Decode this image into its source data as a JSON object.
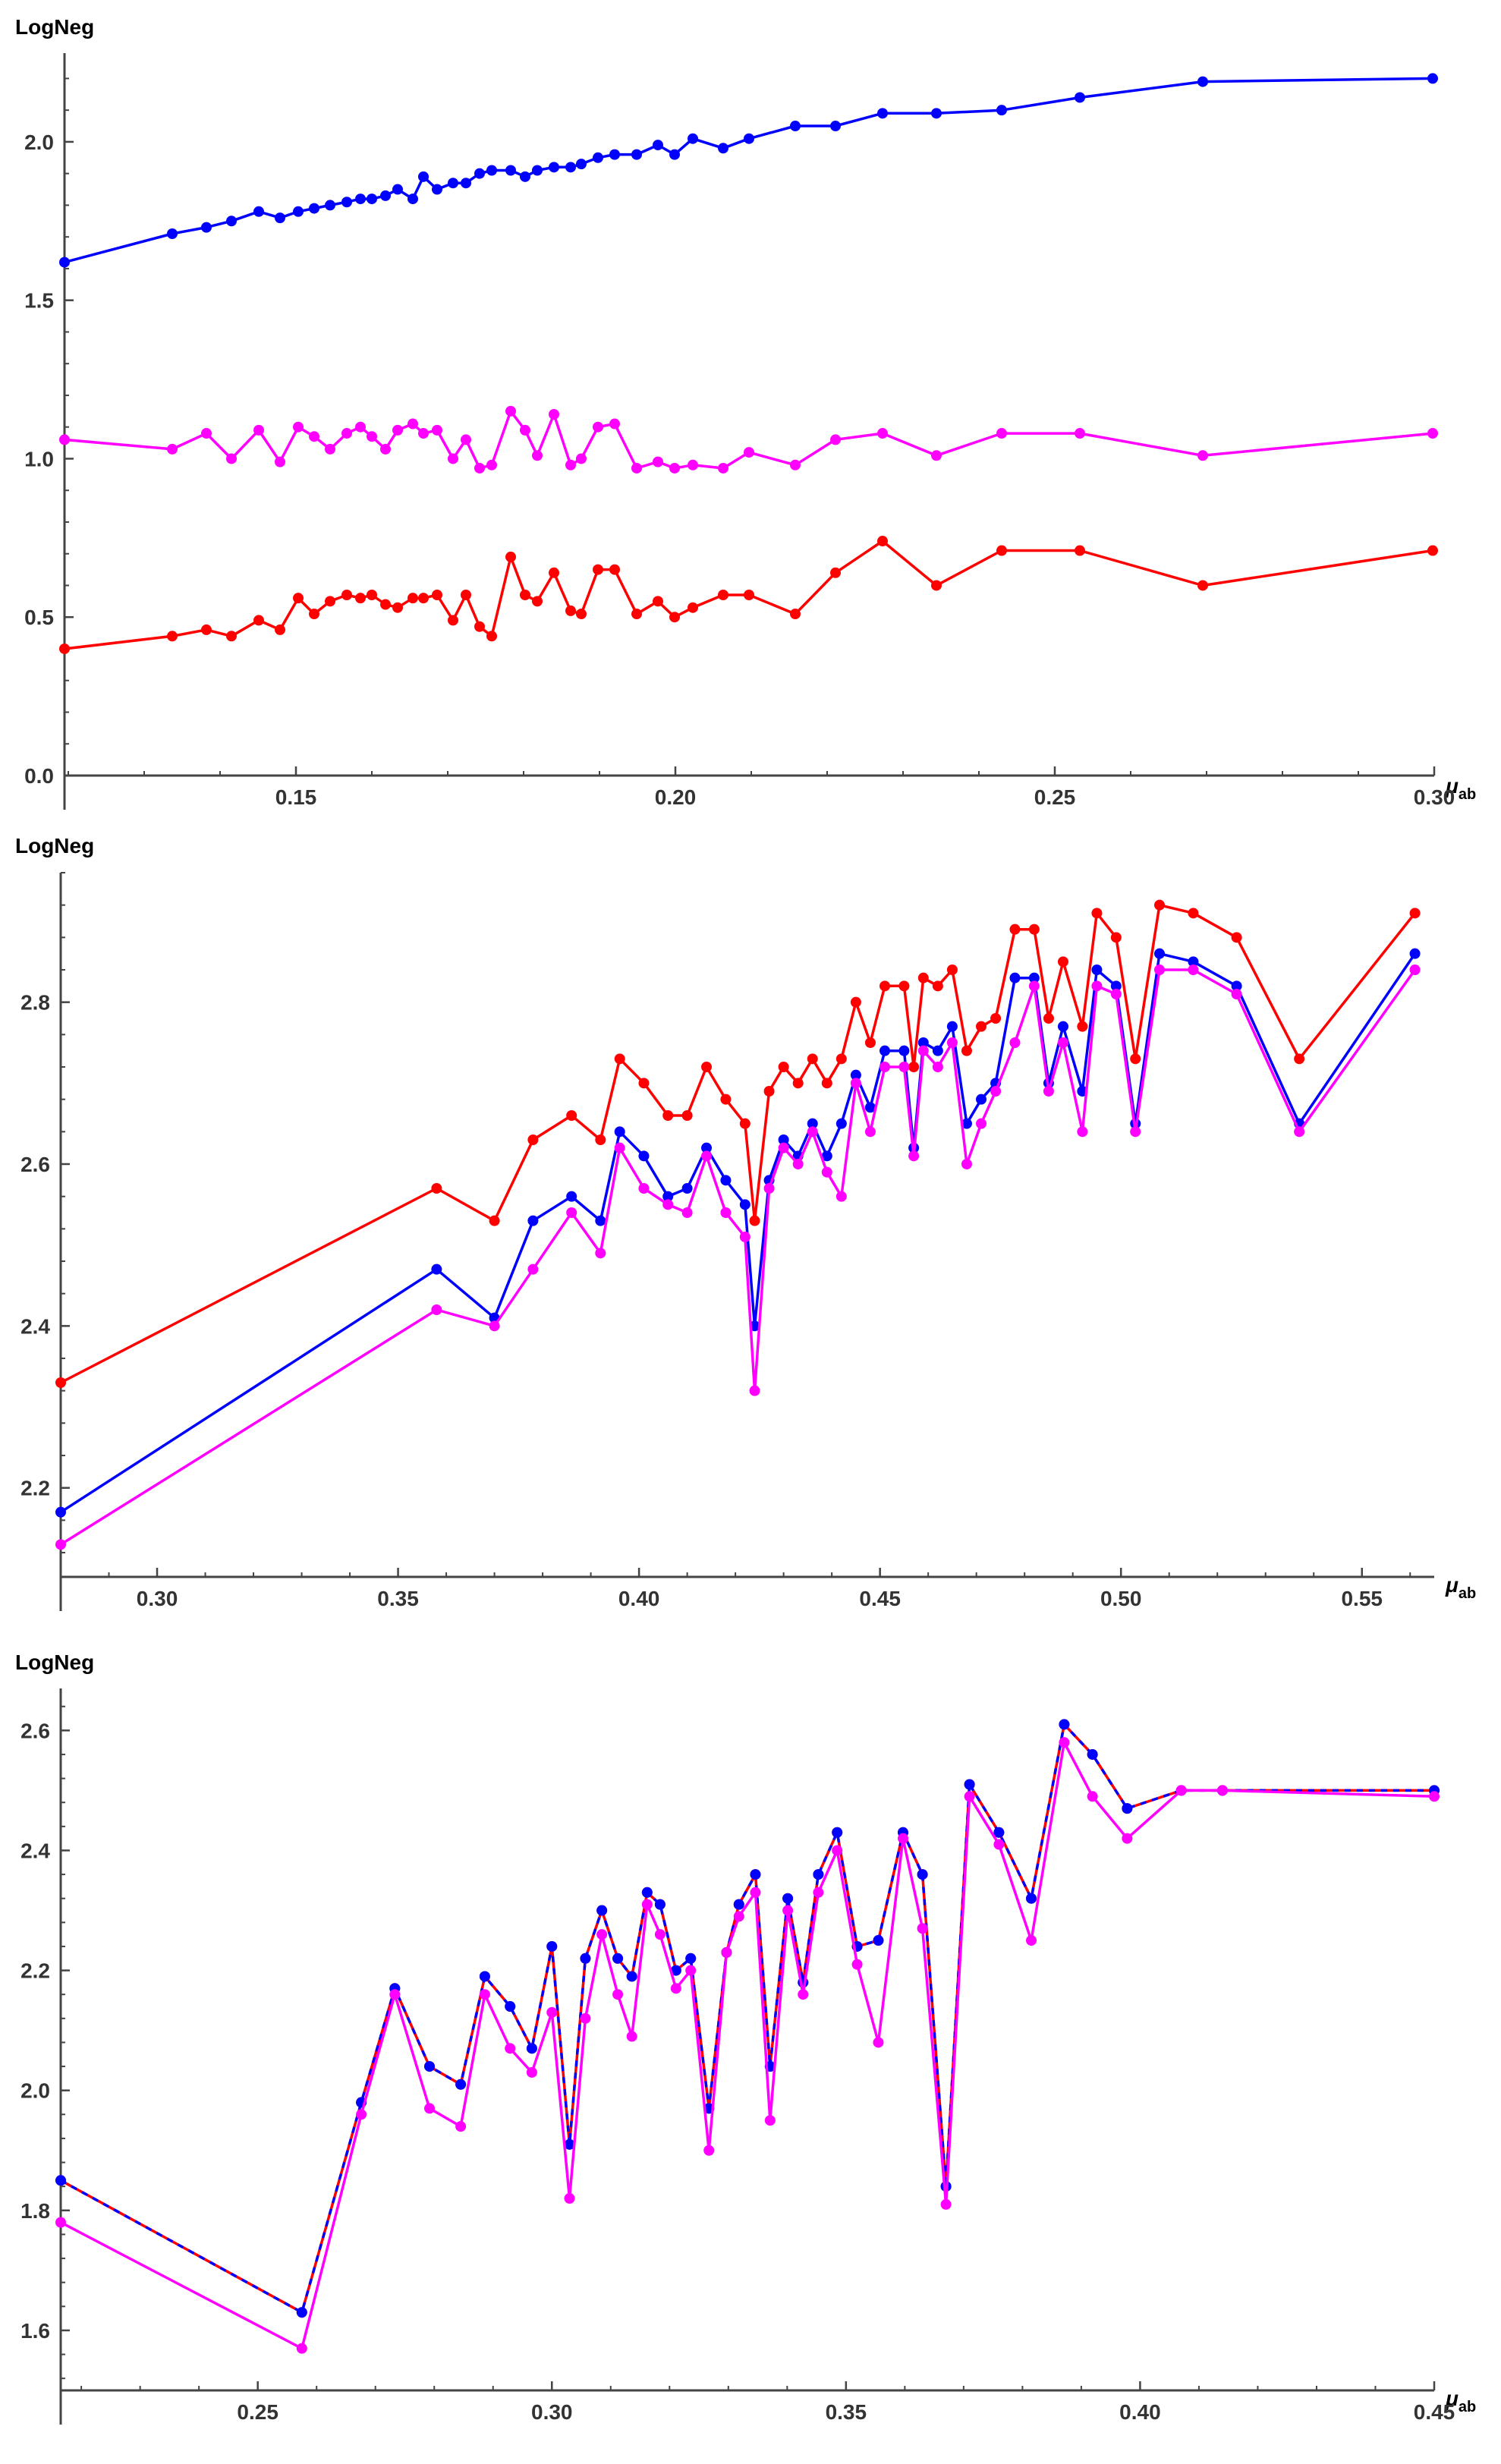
{
  "charts": [
    {
      "type": "line",
      "ylabel": "LogNeg",
      "xlabel": {
        "main": "μ",
        "sub": "ab"
      },
      "xlim": [
        0.1195,
        0.3
      ],
      "ylim": [
        0.0,
        2.28
      ],
      "xticks": [
        "0.15",
        "0.20",
        "0.25",
        "0.30"
      ],
      "yticks": [
        "0.0",
        "0.5",
        "1.0",
        "1.5",
        "2.0"
      ],
      "grid": false,
      "series": [
        {
          "color": "#0000ff",
          "dashed": false,
          "x": [
            0.1195,
            0.1337,
            0.1382,
            0.1415,
            0.1451,
            0.1479,
            0.1503,
            0.1524,
            0.1545,
            0.1567,
            0.1585,
            0.16,
            0.1618,
            0.1634,
            0.1654,
            0.1668,
            0.1686,
            0.1707,
            0.1724,
            0.1742,
            0.1758,
            0.1783,
            0.1802,
            0.1818,
            0.184,
            0.1862,
            0.1876,
            0.1898,
            0.192,
            0.1949,
            0.1977,
            0.1999,
            0.2023,
            0.2063,
            0.2097,
            0.2158,
            0.2211,
            0.2273,
            0.2344,
            0.243,
            0.2533,
            0.2695,
            0.2998
          ],
          "y": [
            1.62,
            1.71,
            1.73,
            1.75,
            1.78,
            1.76,
            1.78,
            1.79,
            1.8,
            1.81,
            1.82,
            1.82,
            1.83,
            1.85,
            1.82,
            1.89,
            1.85,
            1.87,
            1.87,
            1.9,
            1.91,
            1.91,
            1.89,
            1.91,
            1.92,
            1.92,
            1.93,
            1.95,
            1.96,
            1.96,
            1.99,
            1.96,
            2.01,
            1.98,
            2.01,
            2.05,
            2.05,
            2.09,
            2.09,
            2.1,
            2.14,
            2.19,
            2.2
          ]
        },
        {
          "color": "#ff00ff",
          "dashed": false,
          "x": [
            0.1195,
            0.1337,
            0.1382,
            0.1415,
            0.1451,
            0.1479,
            0.1503,
            0.1524,
            0.1545,
            0.1567,
            0.1585,
            0.16,
            0.1618,
            0.1634,
            0.1654,
            0.1668,
            0.1686,
            0.1707,
            0.1724,
            0.1742,
            0.1758,
            0.1783,
            0.1802,
            0.1818,
            0.184,
            0.1862,
            0.1876,
            0.1898,
            0.192,
            0.1949,
            0.1977,
            0.1999,
            0.2023,
            0.2063,
            0.2097,
            0.2158,
            0.2211,
            0.2273,
            0.2344,
            0.243,
            0.2533,
            0.2695,
            0.2998
          ],
          "y": [
            1.06,
            1.03,
            1.08,
            1.0,
            1.09,
            0.99,
            1.1,
            1.07,
            1.03,
            1.08,
            1.1,
            1.07,
            1.03,
            1.09,
            1.11,
            1.08,
            1.09,
            1.0,
            1.06,
            0.97,
            0.98,
            1.15,
            1.09,
            1.01,
            1.14,
            0.98,
            1.0,
            1.1,
            1.11,
            0.97,
            0.99,
            0.97,
            0.98,
            0.97,
            1.02,
            0.98,
            1.06,
            1.08,
            1.01,
            1.08,
            1.08,
            1.01,
            1.08
          ]
        },
        {
          "color": "#ff0000",
          "dashed": false,
          "x": [
            0.1195,
            0.1337,
            0.1382,
            0.1415,
            0.1451,
            0.1479,
            0.1503,
            0.1524,
            0.1545,
            0.1567,
            0.1585,
            0.16,
            0.1618,
            0.1634,
            0.1654,
            0.1668,
            0.1686,
            0.1707,
            0.1724,
            0.1742,
            0.1758,
            0.1783,
            0.1802,
            0.1818,
            0.184,
            0.1862,
            0.1876,
            0.1898,
            0.192,
            0.1949,
            0.1977,
            0.1999,
            0.2023,
            0.2063,
            0.2097,
            0.2158,
            0.2211,
            0.2273,
            0.2344,
            0.243,
            0.2533,
            0.2695,
            0.2998
          ],
          "y": [
            0.4,
            0.44,
            0.46,
            0.44,
            0.49,
            0.46,
            0.56,
            0.51,
            0.55,
            0.57,
            0.56,
            0.57,
            0.54,
            0.53,
            0.56,
            0.56,
            0.57,
            0.49,
            0.57,
            0.47,
            0.44,
            0.69,
            0.57,
            0.55,
            0.64,
            0.52,
            0.51,
            0.65,
            0.65,
            0.51,
            0.55,
            0.5,
            0.53,
            0.57,
            0.57,
            0.51,
            0.64,
            0.74,
            0.6,
            0.71,
            0.71,
            0.6,
            0.71
          ]
        }
      ]
    },
    {
      "type": "line",
      "ylabel": "LogNeg",
      "xlabel": {
        "main": "μ",
        "sub": "ab"
      },
      "xlim": [
        0.28,
        0.565
      ],
      "ylim": [
        2.09,
        2.96
      ],
      "xticks": [
        "0.30",
        "0.35",
        "0.40",
        "0.45",
        "0.50",
        "0.55"
      ],
      "yticks": [
        "2.2",
        "2.4",
        "2.6",
        "2.8"
      ],
      "grid": false,
      "series": [
        {
          "color": "#ff0000",
          "dashed": false,
          "x": [
            0.28,
            0.358,
            0.37,
            0.378,
            0.386,
            0.392,
            0.396,
            0.401,
            0.406,
            0.41,
            0.414,
            0.418,
            0.422,
            0.424,
            0.427,
            0.43,
            0.433,
            0.436,
            0.439,
            0.442,
            0.445,
            0.448,
            0.451,
            0.455,
            0.457,
            0.459,
            0.462,
            0.465,
            0.468,
            0.471,
            0.474,
            0.478,
            0.482,
            0.485,
            0.488,
            0.492,
            0.495,
            0.499,
            0.503,
            0.508,
            0.515,
            0.524,
            0.537,
            0.561
          ],
          "y": [
            2.33,
            2.57,
            2.53,
            2.63,
            2.66,
            2.63,
            2.73,
            2.7,
            2.66,
            2.66,
            2.72,
            2.68,
            2.65,
            2.53,
            2.69,
            2.72,
            2.7,
            2.73,
            2.7,
            2.73,
            2.8,
            2.75,
            2.82,
            2.82,
            2.72,
            2.83,
            2.82,
            2.84,
            2.74,
            2.77,
            2.78,
            2.89,
            2.89,
            2.78,
            2.85,
            2.77,
            2.91,
            2.88,
            2.73,
            2.92,
            2.91,
            2.88,
            2.73,
            2.91
          ]
        },
        {
          "color": "#0000ff",
          "dashed": false,
          "x": [
            0.28,
            0.358,
            0.37,
            0.378,
            0.386,
            0.392,
            0.396,
            0.401,
            0.406,
            0.41,
            0.414,
            0.418,
            0.422,
            0.424,
            0.427,
            0.43,
            0.433,
            0.436,
            0.439,
            0.442,
            0.445,
            0.448,
            0.451,
            0.455,
            0.457,
            0.459,
            0.462,
            0.465,
            0.468,
            0.471,
            0.474,
            0.478,
            0.482,
            0.485,
            0.488,
            0.492,
            0.495,
            0.499,
            0.503,
            0.508,
            0.515,
            0.524,
            0.537,
            0.561
          ],
          "y": [
            2.17,
            2.47,
            2.41,
            2.53,
            2.56,
            2.53,
            2.64,
            2.61,
            2.56,
            2.57,
            2.62,
            2.58,
            2.55,
            2.4,
            2.58,
            2.63,
            2.61,
            2.65,
            2.61,
            2.65,
            2.71,
            2.67,
            2.74,
            2.74,
            2.62,
            2.75,
            2.74,
            2.77,
            2.65,
            2.68,
            2.7,
            2.83,
            2.83,
            2.7,
            2.77,
            2.69,
            2.84,
            2.82,
            2.65,
            2.86,
            2.85,
            2.82,
            2.65,
            2.86
          ]
        },
        {
          "color": "#ff00ff",
          "dashed": false,
          "x": [
            0.28,
            0.358,
            0.37,
            0.378,
            0.386,
            0.392,
            0.396,
            0.401,
            0.406,
            0.41,
            0.414,
            0.418,
            0.422,
            0.424,
            0.427,
            0.43,
            0.433,
            0.436,
            0.439,
            0.442,
            0.445,
            0.448,
            0.451,
            0.455,
            0.457,
            0.459,
            0.462,
            0.465,
            0.468,
            0.471,
            0.474,
            0.478,
            0.482,
            0.485,
            0.488,
            0.492,
            0.495,
            0.499,
            0.503,
            0.508,
            0.515,
            0.524,
            0.537,
            0.561
          ],
          "y": [
            2.13,
            2.42,
            2.4,
            2.47,
            2.54,
            2.49,
            2.62,
            2.57,
            2.55,
            2.54,
            2.61,
            2.54,
            2.51,
            2.32,
            2.57,
            2.62,
            2.6,
            2.64,
            2.59,
            2.56,
            2.7,
            2.64,
            2.72,
            2.72,
            2.61,
            2.74,
            2.72,
            2.75,
            2.6,
            2.65,
            2.69,
            2.75,
            2.82,
            2.69,
            2.75,
            2.64,
            2.82,
            2.81,
            2.64,
            2.84,
            2.84,
            2.81,
            2.64,
            2.84
          ]
        }
      ]
    },
    {
      "type": "line",
      "ylabel": "LogNeg",
      "xlabel": {
        "main": "μ",
        "sub": "ab"
      },
      "xlim": [
        0.2165,
        0.45
      ],
      "ylim": [
        1.5,
        2.67
      ],
      "xticks": [
        "0.25",
        "0.30",
        "0.35",
        "0.40",
        "0.45"
      ],
      "yticks": [
        "1.6",
        "1.8",
        "2.0",
        "2.2",
        "2.4",
        "2.6"
      ],
      "grid": false,
      "series": [
        {
          "color": "#ff0000",
          "dashed": false,
          "x": [
            0.2165,
            0.2575,
            0.2676,
            0.2733,
            0.2792,
            0.2845,
            0.2886,
            0.2929,
            0.2966,
            0.3,
            0.303,
            0.3057,
            0.3085,
            0.3112,
            0.3136,
            0.3162,
            0.3184,
            0.3211,
            0.3236,
            0.3267,
            0.3297,
            0.3318,
            0.3346,
            0.3371,
            0.3401,
            0.3427,
            0.3453,
            0.3485,
            0.3519,
            0.3555,
            0.3597,
            0.363,
            0.367,
            0.371,
            0.376,
            0.3815,
            0.3871,
            0.3919,
            0.3978,
            0.407,
            0.414,
            0.45
          ],
          "y": [
            1.85,
            1.63,
            1.98,
            2.17,
            2.04,
            2.01,
            2.19,
            2.14,
            2.07,
            2.24,
            1.91,
            2.22,
            2.3,
            2.22,
            2.19,
            2.33,
            2.31,
            2.2,
            2.22,
            1.97,
            2.23,
            2.31,
            2.36,
            2.04,
            2.32,
            2.18,
            2.36,
            2.43,
            2.24,
            2.25,
            2.43,
            2.36,
            1.84,
            2.51,
            2.43,
            2.32,
            2.61,
            2.56,
            2.47,
            2.5,
            2.5,
            2.5
          ]
        },
        {
          "color": "#0000ff",
          "dashed": true,
          "x": [
            0.2165,
            0.2575,
            0.2676,
            0.2733,
            0.2792,
            0.2845,
            0.2886,
            0.2929,
            0.2966,
            0.3,
            0.303,
            0.3057,
            0.3085,
            0.3112,
            0.3136,
            0.3162,
            0.3184,
            0.3211,
            0.3236,
            0.3267,
            0.3297,
            0.3318,
            0.3346,
            0.3371,
            0.3401,
            0.3427,
            0.3453,
            0.3485,
            0.3519,
            0.3555,
            0.3597,
            0.363,
            0.367,
            0.371,
            0.376,
            0.3815,
            0.3871,
            0.3919,
            0.3978,
            0.407,
            0.414,
            0.45
          ],
          "y": [
            1.85,
            1.63,
            1.98,
            2.17,
            2.04,
            2.01,
            2.19,
            2.14,
            2.07,
            2.24,
            1.91,
            2.22,
            2.3,
            2.22,
            2.19,
            2.33,
            2.31,
            2.2,
            2.22,
            1.97,
            2.23,
            2.31,
            2.36,
            2.04,
            2.32,
            2.18,
            2.36,
            2.43,
            2.24,
            2.25,
            2.43,
            2.36,
            1.84,
            2.51,
            2.43,
            2.32,
            2.61,
            2.56,
            2.47,
            2.5,
            2.5,
            2.5
          ]
        },
        {
          "color": "#ff00ff",
          "dashed": false,
          "x": [
            0.2165,
            0.2575,
            0.2676,
            0.2733,
            0.2792,
            0.2845,
            0.2886,
            0.2929,
            0.2966,
            0.3,
            0.303,
            0.3057,
            0.3085,
            0.3112,
            0.3136,
            0.3162,
            0.3184,
            0.3211,
            0.3236,
            0.3267,
            0.3297,
            0.3318,
            0.3346,
            0.3371,
            0.3401,
            0.3427,
            0.3453,
            0.3485,
            0.3519,
            0.3555,
            0.3597,
            0.363,
            0.367,
            0.371,
            0.376,
            0.3815,
            0.3871,
            0.3919,
            0.3978,
            0.407,
            0.414,
            0.45
          ],
          "y": [
            1.78,
            1.57,
            1.96,
            2.16,
            1.97,
            1.94,
            2.16,
            2.07,
            2.03,
            2.13,
            1.82,
            2.12,
            2.26,
            2.16,
            2.09,
            2.31,
            2.26,
            2.17,
            2.2,
            1.9,
            2.23,
            2.29,
            2.33,
            1.95,
            2.3,
            2.16,
            2.33,
            2.4,
            2.21,
            2.08,
            2.42,
            2.27,
            1.81,
            2.49,
            2.41,
            2.25,
            2.58,
            2.49,
            2.42,
            2.5,
            2.5,
            2.49
          ]
        }
      ]
    }
  ]
}
